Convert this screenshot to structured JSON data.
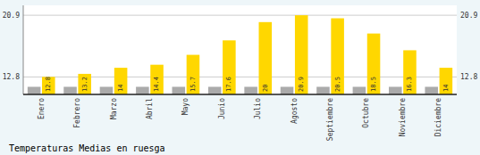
{
  "chart_data": {
    "type": "bar",
    "title": "Temperaturas Medias en ruesga",
    "categories": [
      "Enero",
      "Febrero",
      "Marzo",
      "Abril",
      "Mayo",
      "Junio",
      "Julio",
      "Agosto",
      "Septiembre",
      "Octubre",
      "Noviembre",
      "Diciembre"
    ],
    "series": [
      {
        "color": "#AAAAAA",
        "values": [
          11.5,
          11.5,
          11.5,
          11.5,
          11.5,
          11.5,
          11.5,
          11.5,
          11.5,
          11.5,
          11.5,
          11.5
        ]
      },
      {
        "color": "#FFD700",
        "values": [
          12.8,
          13.2,
          14.0,
          14.4,
          15.7,
          17.6,
          20.0,
          20.9,
          20.5,
          18.5,
          16.3,
          14.0
        ],
        "data_labels": true
      }
    ],
    "ylim": [
      10.5,
      22.2
    ],
    "yticks": [
      12.8,
      20.9
    ],
    "grid": true
  }
}
